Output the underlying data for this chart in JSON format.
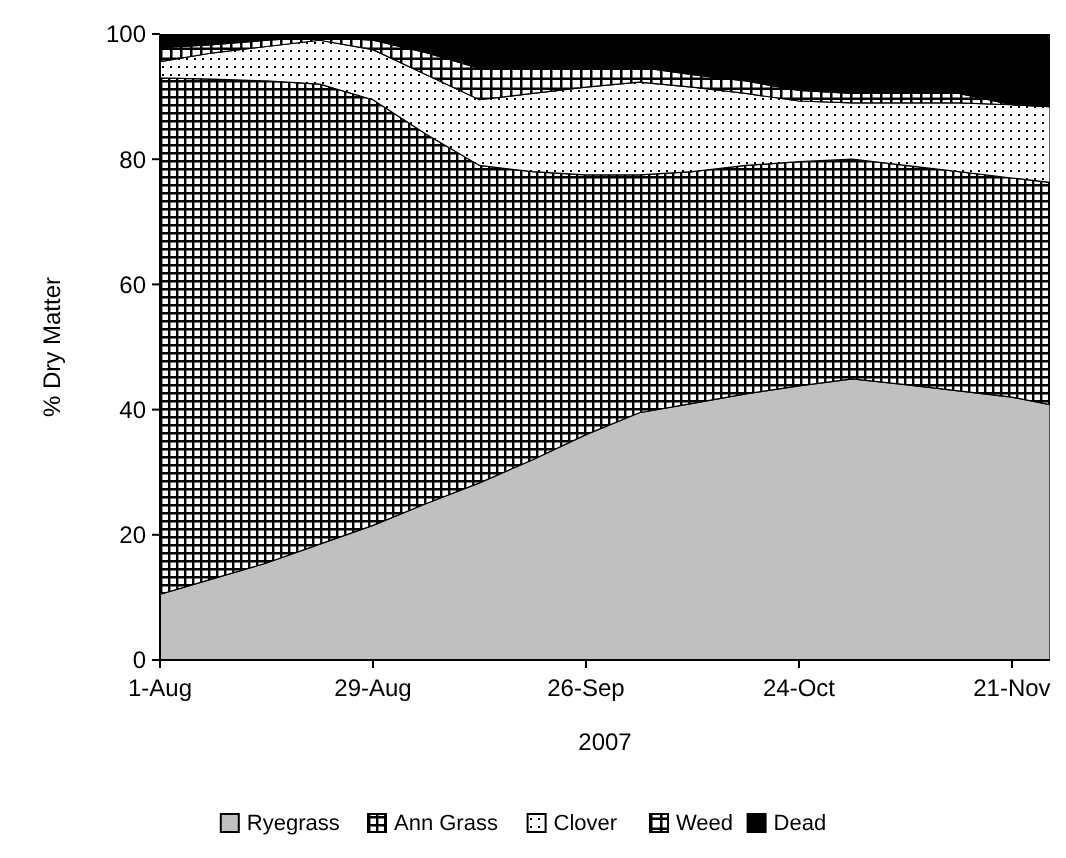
{
  "chart_data": {
    "type": "area",
    "stacked": true,
    "ylabel": "% Dry Matter",
    "xlabel": "2007",
    "x": [
      "2007-08-01",
      "2007-08-08",
      "2007-08-15",
      "2007-08-22",
      "2007-08-29",
      "2007-09-05",
      "2007-09-12",
      "2007-09-19",
      "2007-09-26",
      "2007-10-03",
      "2007-10-10",
      "2007-10-17",
      "2007-10-24",
      "2007-10-31",
      "2007-11-07",
      "2007-11-14",
      "2007-11-21",
      "2007-11-26"
    ],
    "xlim": [
      "2007-08-01",
      "2007-11-26"
    ],
    "xticks": [
      {
        "value": "2007-08-01",
        "label": "1-Aug"
      },
      {
        "value": "2007-08-29",
        "label": "29-Aug"
      },
      {
        "value": "2007-09-26",
        "label": "26-Sep"
      },
      {
        "value": "2007-10-24",
        "label": "24-Oct"
      },
      {
        "value": "2007-11-21",
        "label": "21-Nov"
      }
    ],
    "ylim": [
      0,
      100
    ],
    "yticks": [
      0,
      20,
      40,
      60,
      80,
      100
    ],
    "legend": "bottom",
    "series": [
      {
        "name": "Ryegrass",
        "color": "#c0c0c0",
        "values": [
          10.5,
          13,
          15.5,
          18.5,
          21.5,
          25,
          28.3,
          32,
          36,
          39.5,
          41,
          42.5,
          43.8,
          44.9,
          44,
          43,
          42,
          40.8
        ]
      },
      {
        "name": "Ann Grass",
        "color": "#000000",
        "values": [
          82.5,
          79.8,
          77,
          73.5,
          68,
          59,
          50.7,
          46,
          41.5,
          38,
          37,
          36.5,
          35.8,
          35.1,
          35,
          35,
          35,
          35.5
        ]
      },
      {
        "name": "Clover",
        "color": "#000000",
        "values": [
          2.6,
          4.2,
          5.5,
          7,
          8,
          9.5,
          10.5,
          12.5,
          14,
          14.8,
          13.5,
          11.5,
          9.7,
          9,
          10,
          11,
          11.7,
          12.1
        ]
      },
      {
        "name": "Weed",
        "color": "#000000",
        "values": [
          2.2,
          1.3,
          1,
          0.5,
          1.5,
          3.5,
          5,
          4,
          3,
          2.4,
          2,
          2,
          1.7,
          1.5,
          1.5,
          1.5,
          0,
          0
        ]
      },
      {
        "name": "Dead",
        "color": "#000000",
        "values": [
          2.2,
          1.7,
          1,
          0.5,
          1,
          3,
          5.5,
          5.5,
          5.5,
          5.3,
          6.5,
          7.5,
          9,
          9.5,
          9.5,
          9.5,
          11.3,
          11.6
        ]
      }
    ]
  }
}
